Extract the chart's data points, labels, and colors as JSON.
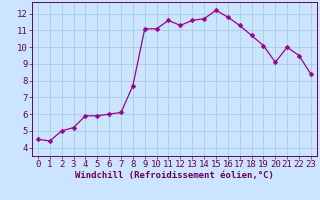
{
  "x": [
    0,
    1,
    2,
    3,
    4,
    5,
    6,
    7,
    8,
    9,
    10,
    11,
    12,
    13,
    14,
    15,
    16,
    17,
    18,
    19,
    20,
    21,
    22,
    23
  ],
  "y": [
    4.5,
    4.4,
    5.0,
    5.2,
    5.9,
    5.9,
    6.0,
    6.1,
    7.7,
    11.1,
    11.1,
    11.6,
    11.3,
    11.6,
    11.7,
    12.2,
    11.8,
    11.3,
    10.7,
    10.1,
    9.1,
    10.0,
    9.5,
    8.4
  ],
  "line_color": "#990099",
  "marker": "D",
  "marker_size": 2.5,
  "bg_color": "#cce5ff",
  "grid_color": "#aaccdd",
  "xlabel": "Windchill (Refroidissement éolien,°C)",
  "xlabel_color": "#660066",
  "tick_color": "#660066",
  "axis_color": "#660066",
  "ylim": [
    3.5,
    12.7
  ],
  "xlim": [
    -0.5,
    23.5
  ],
  "yticks": [
    4,
    5,
    6,
    7,
    8,
    9,
    10,
    11,
    12
  ],
  "xticks": [
    0,
    1,
    2,
    3,
    4,
    5,
    6,
    7,
    8,
    9,
    10,
    11,
    12,
    13,
    14,
    15,
    16,
    17,
    18,
    19,
    20,
    21,
    22,
    23
  ],
  "font_size_label": 6.5,
  "font_size_tick": 6.5
}
